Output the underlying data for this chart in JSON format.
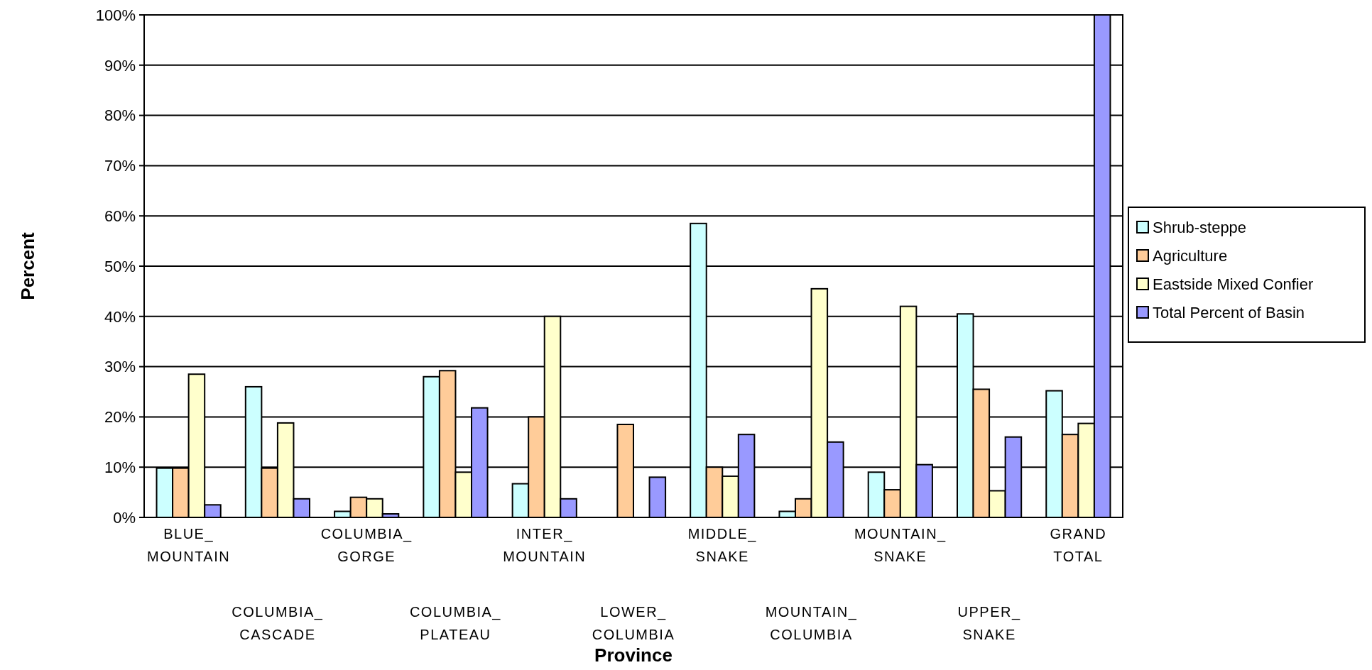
{
  "chart_data": {
    "type": "bar",
    "xlabel": "Province",
    "ylabel": "Percent",
    "categories": [
      "BLUE_\nMOUNTAIN",
      "COLUMBIA_\nCASCADE",
      "COLUMBIA_\nGORGE",
      "COLUMBIA_\nPLATEAU",
      "INTER_\nMOUNTAIN",
      "LOWER_\nCOLUMBIA",
      "MIDDLE_\nSNAKE",
      "MOUNTAIN_\nCOLUMBIA",
      "MOUNTAIN_\nSNAKE",
      "UPPER_\nSNAKE",
      "GRAND\nTOTAL"
    ],
    "series": [
      {
        "name": "Shrub-steppe",
        "color": "#ccffff",
        "values": [
          9.8,
          26,
          1.2,
          28,
          6.7,
          0,
          58.5,
          1.2,
          9,
          40.5,
          25.2
        ]
      },
      {
        "name": "Agriculture",
        "color": "#ffcc99",
        "values": [
          9.8,
          9.8,
          4,
          29.2,
          20,
          18.5,
          10,
          3.7,
          5.5,
          25.5,
          16.5
        ]
      },
      {
        "name": "Eastside Mixed Confier",
        "color": "#ffffcc",
        "values": [
          28.5,
          18.8,
          3.7,
          9,
          40,
          0,
          8.2,
          45.5,
          42,
          5.3,
          18.7
        ]
      },
      {
        "name": "Total Percent of Basin",
        "color": "#9999ff",
        "values": [
          2.5,
          3.7,
          0.7,
          21.8,
          3.7,
          8,
          16.5,
          15,
          10.5,
          16,
          100
        ]
      }
    ],
    "ylim": [
      0,
      100
    ],
    "yticks": [
      {
        "value": 0,
        "label": "0%"
      },
      {
        "value": 10,
        "label": "10%"
      },
      {
        "value": 20,
        "label": "20%"
      },
      {
        "value": 30,
        "label": "30%"
      },
      {
        "value": 40,
        "label": "40%"
      },
      {
        "value": 50,
        "label": "50%"
      },
      {
        "value": 60,
        "label": "60%"
      },
      {
        "value": 70,
        "label": "70%"
      },
      {
        "value": 80,
        "label": "80%"
      },
      {
        "value": 90,
        "label": "90%"
      },
      {
        "value": 100,
        "label": "100%"
      }
    ],
    "grid": "y",
    "legend": "right"
  }
}
